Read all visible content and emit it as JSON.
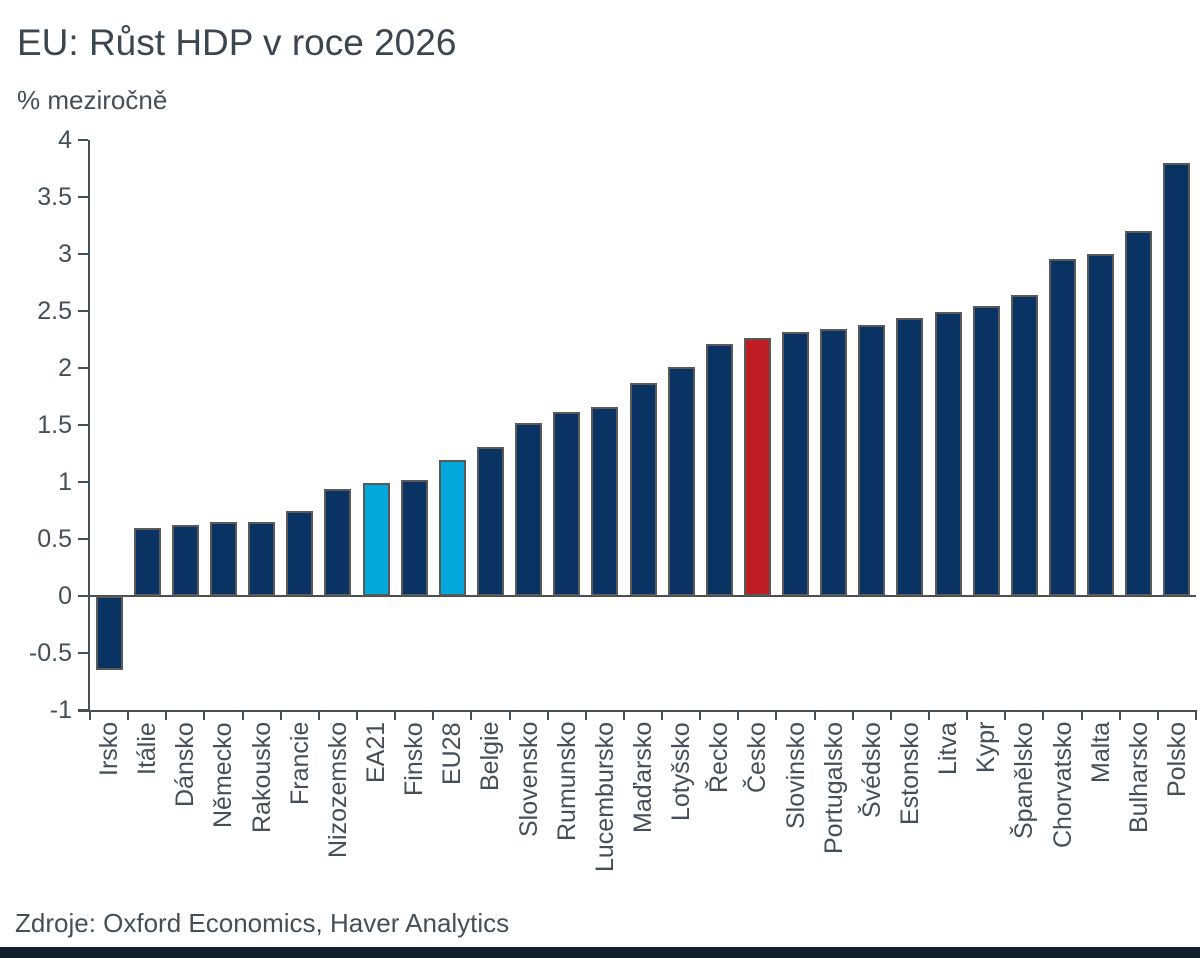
{
  "page": {
    "title": "EU: Růst HDP v roce 2026",
    "subtitle": "% meziročně",
    "source": "Zdroje: Oxford Economics, Haver Analytics"
  },
  "chart_data": {
    "type": "bar",
    "title": "EU: Růst HDP v roce 2026",
    "subtitle": "% meziročně",
    "xlabel": "",
    "ylabel": "% meziročně",
    "ylim": [
      -1,
      4
    ],
    "ytick_step": 0.5,
    "grid": false,
    "legend": "none",
    "source": "Zdroje: Oxford Economics, Haver Analytics",
    "categories": [
      "Irsko",
      "Itálie",
      "Dánsko",
      "Německo",
      "Rakousko",
      "Francie",
      "Nizozemsko",
      "EA21",
      "Finsko",
      "EU28",
      "Belgie",
      "Slovensko",
      "Rumunsko",
      "Lucembursko",
      "Maďarsko",
      "Lotyšsko",
      "Řecko",
      "Česko",
      "Slovinsko",
      "Portugalsko",
      "Švédsko",
      "Estonsko",
      "Litva",
      "Kypr",
      "Španělsko",
      "Chorvatsko",
      "Malta",
      "Bulharsko",
      "Polsko"
    ],
    "values": [
      -0.65,
      0.6,
      0.62,
      0.65,
      0.65,
      0.75,
      0.94,
      0.99,
      1.02,
      1.19,
      1.31,
      1.52,
      1.61,
      1.66,
      1.87,
      2.01,
      2.21,
      2.26,
      2.32,
      2.34,
      2.38,
      2.44,
      2.49,
      2.54,
      2.64,
      2.96,
      3.0,
      3.2,
      3.8
    ],
    "bar_color_keys": [
      "navy",
      "navy",
      "navy",
      "navy",
      "navy",
      "navy",
      "navy",
      "cyan",
      "navy",
      "cyan",
      "navy",
      "navy",
      "navy",
      "navy",
      "navy",
      "navy",
      "navy",
      "red",
      "navy",
      "navy",
      "navy",
      "navy",
      "navy",
      "navy",
      "navy",
      "navy",
      "navy",
      "navy",
      "navy"
    ],
    "colors": {
      "navy": "#083362",
      "cyan": "#00a8db",
      "red": "#be1d23",
      "outline": "#595959",
      "text": "#454f59",
      "axis": "#44505a",
      "accent_strip": "#10202f"
    }
  }
}
